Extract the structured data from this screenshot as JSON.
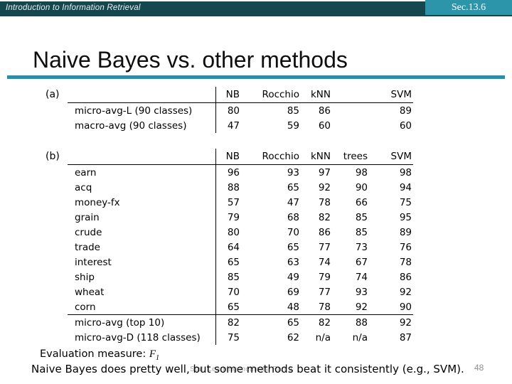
{
  "header": {
    "course_title": "Introduction to Information Retrieval",
    "section": "Sec.13.6",
    "bar_color": "#15474f",
    "badge_color": "#2d95aa"
  },
  "slide": {
    "title": "Naive Bayes vs. other methods",
    "accent_color": "#2791a8",
    "page_number": "48"
  },
  "table_a": {
    "label": "(a)",
    "columns": [
      "NB",
      "Rocchio",
      "kNN",
      "SVM"
    ],
    "rows": [
      {
        "label": "micro-avg-L (90 classes)",
        "values": [
          "80",
          "85",
          "86",
          "89"
        ]
      },
      {
        "label": "macro-avg (90 classes)",
        "values": [
          "47",
          "59",
          "60",
          "60"
        ]
      }
    ]
  },
  "table_b": {
    "label": "(b)",
    "columns": [
      "NB",
      "Rocchio",
      "kNN",
      "trees",
      "SVM"
    ],
    "rows": [
      {
        "label": "earn",
        "values": [
          "96",
          "93",
          "97",
          "98",
          "98"
        ]
      },
      {
        "label": "acq",
        "values": [
          "88",
          "65",
          "92",
          "90",
          "94"
        ]
      },
      {
        "label": "money-fx",
        "values": [
          "57",
          "47",
          "78",
          "66",
          "75"
        ]
      },
      {
        "label": "grain",
        "values": [
          "79",
          "68",
          "82",
          "85",
          "95"
        ]
      },
      {
        "label": "crude",
        "values": [
          "80",
          "70",
          "86",
          "85",
          "89"
        ]
      },
      {
        "label": "trade",
        "values": [
          "64",
          "65",
          "77",
          "73",
          "76"
        ]
      },
      {
        "label": "interest",
        "values": [
          "65",
          "63",
          "74",
          "67",
          "78"
        ]
      },
      {
        "label": "ship",
        "values": [
          "85",
          "49",
          "79",
          "74",
          "86"
        ]
      },
      {
        "label": "wheat",
        "values": [
          "70",
          "69",
          "77",
          "93",
          "92"
        ]
      },
      {
        "label": "corn",
        "values": [
          "65",
          "48",
          "78",
          "92",
          "90"
        ]
      }
    ],
    "summary_rows": [
      {
        "label": "micro-avg (top 10)",
        "values": [
          "82",
          "65",
          "82",
          "88",
          "92"
        ]
      },
      {
        "label": "micro-avg-D (118 classes)",
        "values": [
          "75",
          "62",
          "n/a",
          "n/a",
          "87"
        ]
      }
    ]
  },
  "footer": {
    "eval_label": "Evaluation measure:",
    "eval_measure": "F",
    "eval_measure_sub": "1",
    "conclusion": "Naive Bayes does pretty well, but some methods beat it consistently (e.g., SVM).",
    "watermark": "Stat. Learning methods, Part 2"
  }
}
